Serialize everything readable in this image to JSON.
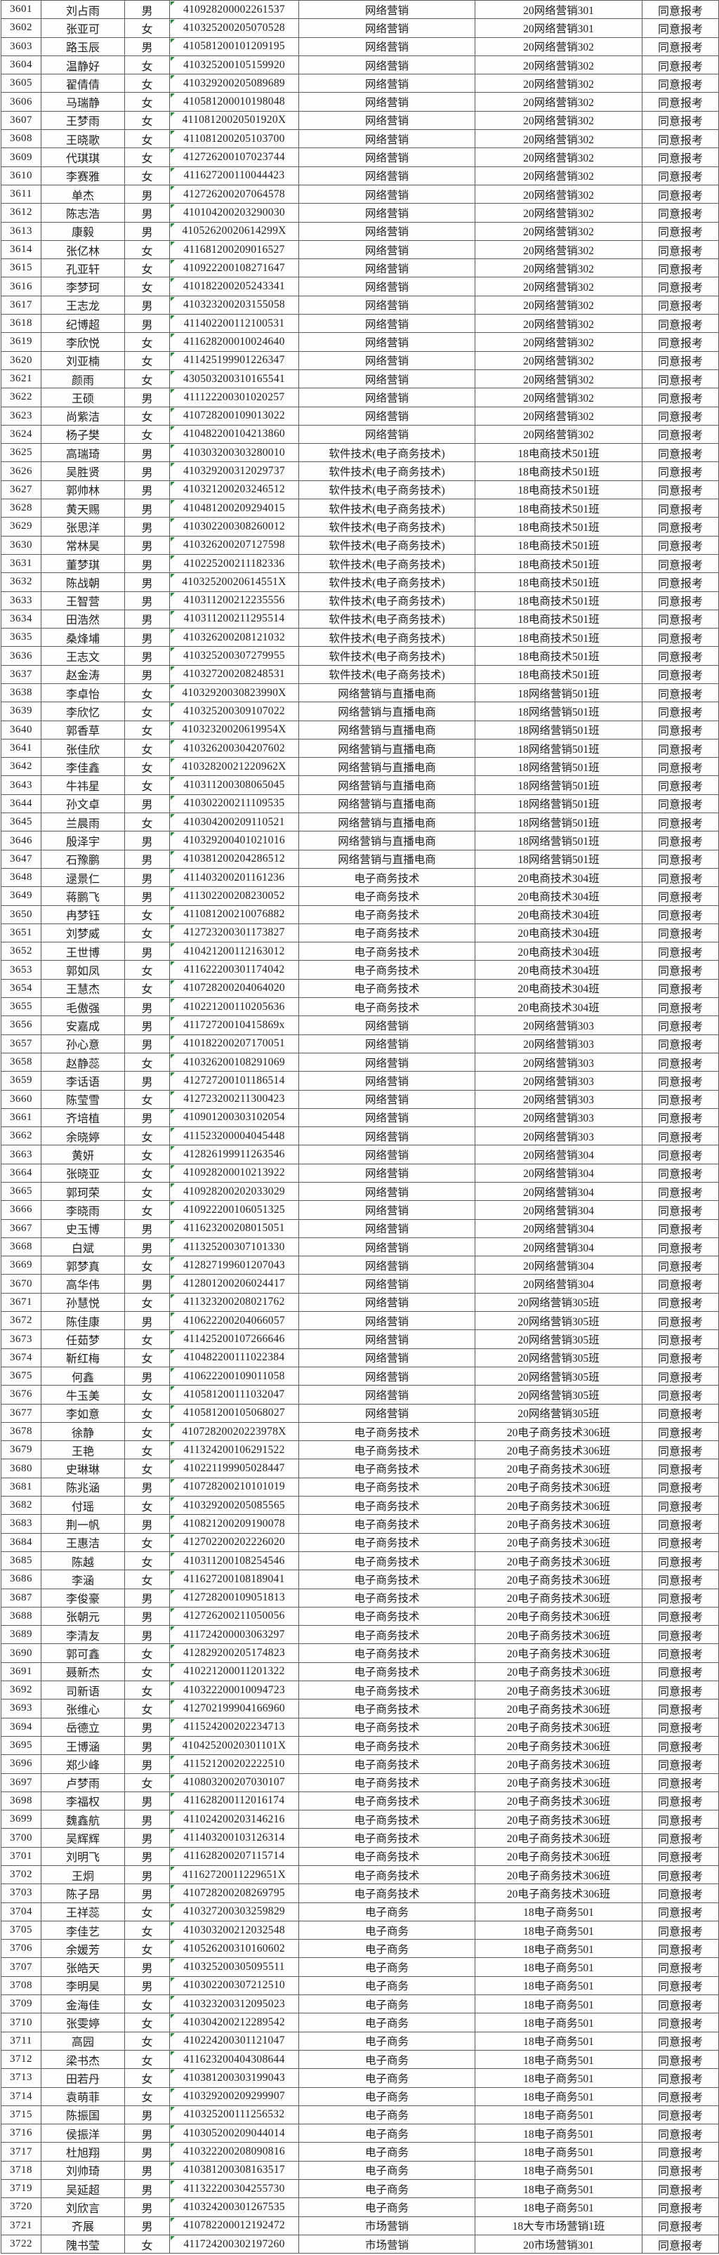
{
  "colors": {
    "background": "#fdfdfd",
    "grid_border": "#5b5b5b",
    "text": "#1d1d1d",
    "id_indicator_green": "#2e8b3d"
  },
  "table": {
    "status_label": "同意报考",
    "rows": [
      [
        "3601",
        "刘占雨",
        "男",
        "410928200002261537",
        "网络营销",
        "20网络营销301",
        "同意报考"
      ],
      [
        "3602",
        "张亚可",
        "女",
        "410325200205070528",
        "网络营销",
        "20网络营销301",
        "同意报考"
      ],
      [
        "3603",
        "路玉辰",
        "男",
        "410581200101209195",
        "网络营销",
        "20网络营销302",
        "同意报考"
      ],
      [
        "3604",
        "温静好",
        "女",
        "410325200105159920",
        "网络营销",
        "20网络营销302",
        "同意报考"
      ],
      [
        "3605",
        "翟倩倩",
        "女",
        "410329200205089689",
        "网络营销",
        "20网络营销302",
        "同意报考"
      ],
      [
        "3606",
        "马瑞静",
        "女",
        "410581200010198048",
        "网络营销",
        "20网络营销302",
        "同意报考"
      ],
      [
        "3607",
        "王梦雨",
        "女",
        "41108120020501920X",
        "网络营销",
        "20网络营销302",
        "同意报考"
      ],
      [
        "3608",
        "王晓歌",
        "女",
        "411081200205103700",
        "网络营销",
        "20网络营销302",
        "同意报考"
      ],
      [
        "3609",
        "代琪琪",
        "女",
        "412726200107023744",
        "网络营销",
        "20网络营销302",
        "同意报考"
      ],
      [
        "3610",
        "李赛雅",
        "女",
        "411627200110044423",
        "网络营销",
        "20网络营销302",
        "同意报考"
      ],
      [
        "3611",
        "单杰",
        "男",
        "412726200207064578",
        "网络营销",
        "20网络营销302",
        "同意报考"
      ],
      [
        "3612",
        "陈志浩",
        "男",
        "410104200203290030",
        "网络营销",
        "20网络营销302",
        "同意报考"
      ],
      [
        "3613",
        "康毅",
        "男",
        "41052620020614299X",
        "网络营销",
        "20网络营销302",
        "同意报考"
      ],
      [
        "3614",
        "张亿林",
        "女",
        "411681200209016527",
        "网络营销",
        "20网络营销302",
        "同意报考"
      ],
      [
        "3615",
        "孔亚轩",
        "女",
        "410922200108271647",
        "网络营销",
        "20网络营销302",
        "同意报考"
      ],
      [
        "3616",
        "李梦珂",
        "女",
        "410182200205243341",
        "网络营销",
        "20网络营销302",
        "同意报考"
      ],
      [
        "3617",
        "王志龙",
        "男",
        "410323200203155058",
        "网络营销",
        "20网络营销302",
        "同意报考"
      ],
      [
        "3618",
        "纪博超",
        "男",
        "411402200112100531",
        "网络营销",
        "20网络营销302",
        "同意报考"
      ],
      [
        "3619",
        "李欣悦",
        "女",
        "411628200010024640",
        "网络营销",
        "20网络营销302",
        "同意报考"
      ],
      [
        "3620",
        "刘亚楠",
        "女",
        "411425199901226347",
        "网络营销",
        "20网络营销302",
        "同意报考"
      ],
      [
        "3621",
        "颜雨",
        "女",
        "430503200310165541",
        "网络营销",
        "20网络营销302",
        "同意报考"
      ],
      [
        "3622",
        "王硕",
        "男",
        "411122200301020257",
        "网络营销",
        "20网络营销302",
        "同意报考"
      ],
      [
        "3623",
        "尚紫洁",
        "女",
        "410728200109013022",
        "网络营销",
        "20网络营销302",
        "同意报考"
      ],
      [
        "3624",
        "杨子樊",
        "女",
        "410482200104213860",
        "网络营销",
        "20网络营销302",
        "同意报考"
      ],
      [
        "3625",
        "高瑞琦",
        "男",
        "410303200303280010",
        "软件技术(电子商务技术)",
        "18电商技术501班",
        "同意报考"
      ],
      [
        "3626",
        "吴胜贤",
        "男",
        "410329200312029737",
        "软件技术(电子商务技术)",
        "18电商技术501班",
        "同意报考"
      ],
      [
        "3627",
        "郭帅林",
        "男",
        "410321200203246512",
        "软件技术(电子商务技术)",
        "18电商技术501班",
        "同意报考"
      ],
      [
        "3628",
        "黄天赐",
        "男",
        "410481200209294015",
        "软件技术(电子商务技术)",
        "18电商技术501班",
        "同意报考"
      ],
      [
        "3629",
        "张思洋",
        "男",
        "410302200308260012",
        "软件技术(电子商务技术)",
        "18电商技术501班",
        "同意报考"
      ],
      [
        "3630",
        "常林昊",
        "男",
        "410326200207127598",
        "软件技术(电子商务技术)",
        "18电商技术501班",
        "同意报考"
      ],
      [
        "3631",
        "董梦琪",
        "男",
        "410225200211182336",
        "软件技术(电子商务技术)",
        "18电商技术501班",
        "同意报考"
      ],
      [
        "3632",
        "陈战朝",
        "男",
        "41032520020614551X",
        "软件技术(电子商务技术)",
        "18电商技术501班",
        "同意报考"
      ],
      [
        "3633",
        "王智营",
        "男",
        "410311200212235556",
        "软件技术(电子商务技术)",
        "18电商技术501班",
        "同意报考"
      ],
      [
        "3634",
        "田浩然",
        "男",
        "410311200211295514",
        "软件技术(电子商务技术)",
        "18电商技术501班",
        "同意报考"
      ],
      [
        "3635",
        "桑烽埔",
        "男",
        "410326200208121032",
        "软件技术(电子商务技术)",
        "18电商技术501班",
        "同意报考"
      ],
      [
        "3636",
        "王志文",
        "男",
        "410325200307279955",
        "软件技术(电子商务技术)",
        "18电商技术501班",
        "同意报考"
      ],
      [
        "3637",
        "赵金涛",
        "男",
        "410327200208248531",
        "软件技术(电子商务技术)",
        "18电商技术501班",
        "同意报考"
      ],
      [
        "3638",
        "李卓怡",
        "女",
        "41032920030823990X",
        "网络营销与直播电商",
        "18网络营销501班",
        "同意报考"
      ],
      [
        "3639",
        "李欣忆",
        "女",
        "410325200309107022",
        "网络营销与直播电商",
        "18网络营销501班",
        "同意报考"
      ],
      [
        "3640",
        "郭香草",
        "女",
        "41032320020619954X",
        "网络营销与直播电商",
        "18网络营销501班",
        "同意报考"
      ],
      [
        "3641",
        "张佳欣",
        "女",
        "410326200304207602",
        "网络营销与直播电商",
        "18网络营销501班",
        "同意报考"
      ],
      [
        "3642",
        "李佳鑫",
        "女",
        "41032820021220962X",
        "网络营销与直播电商",
        "18网络营销501班",
        "同意报考"
      ],
      [
        "3643",
        "牛祎星",
        "女",
        "410311200308065045",
        "网络营销与直播电商",
        "18网络营销501班",
        "同意报考"
      ],
      [
        "3644",
        "孙文卓",
        "男",
        "410302200211109535",
        "网络营销与直播电商",
        "18网络营销501班",
        "同意报考"
      ],
      [
        "3645",
        "兰晨雨",
        "女",
        "410304200209110521",
        "网络营销与直播电商",
        "18网络营销501班",
        "同意报考"
      ],
      [
        "3646",
        "殷泽宇",
        "男",
        "410329200401021016",
        "网络营销与直播电商",
        "18网络营销501班",
        "同意报考"
      ],
      [
        "3647",
        "石豫鹏",
        "男",
        "410381200204286512",
        "网络营销与直播电商",
        "18网络营销501班",
        "同意报考"
      ],
      [
        "3648",
        "逯景仁",
        "男",
        "411403200201161236",
        "电子商务技术",
        "20电商技术304班",
        "同意报考"
      ],
      [
        "3649",
        "蒋鹏飞",
        "男",
        "411302200208230052",
        "电子商务技术",
        "20电商技术304班",
        "同意报考"
      ],
      [
        "3650",
        "冉梦钰",
        "女",
        "411081200210076882",
        "电子商务技术",
        "20电商技术304班",
        "同意报考"
      ],
      [
        "3651",
        "刘梦威",
        "女",
        "412723200301173827",
        "电子商务技术",
        "20电商技术304班",
        "同意报考"
      ],
      [
        "3652",
        "王世博",
        "男",
        "410421200112163012",
        "电子商务技术",
        "20电商技术304班",
        "同意报考"
      ],
      [
        "3653",
        "郭如凤",
        "女",
        "411622200301174042",
        "电子商务技术",
        "20电商技术304班",
        "同意报考"
      ],
      [
        "3654",
        "王慧杰",
        "女",
        "410728200204064020",
        "电子商务技术",
        "20电商技术304班",
        "同意报考"
      ],
      [
        "3655",
        "毛傲强",
        "男",
        "410221200110205636",
        "电子商务技术",
        "20电商技术304班",
        "同意报考"
      ],
      [
        "3656",
        "安嘉成",
        "男",
        "41172720010415869x",
        "网络营销",
        "20网络营销303",
        "同意报考"
      ],
      [
        "3657",
        "孙心意",
        "男",
        "410182200207170051",
        "网络营销",
        "20网络营销303",
        "同意报考"
      ],
      [
        "3658",
        "赵静蕊",
        "女",
        "410326200108291069",
        "网络营销",
        "20网络营销303",
        "同意报考"
      ],
      [
        "3659",
        "李话语",
        "男",
        "412727200101186514",
        "网络营销",
        "20网络营销303",
        "同意报考"
      ],
      [
        "3660",
        "陈莹雪",
        "女",
        "412723200211300423",
        "网络营销",
        "20网络营销303",
        "同意报考"
      ],
      [
        "3661",
        "齐培植",
        "男",
        "410901200303102054",
        "网络营销",
        "20网络营销303",
        "同意报考"
      ],
      [
        "3662",
        "余晓婷",
        "女",
        "411523200004045448",
        "网络营销",
        "20网络营销303",
        "同意报考"
      ],
      [
        "3663",
        "黄妍",
        "女",
        "412826199911263546",
        "网络营销",
        "20网络营销304",
        "同意报考"
      ],
      [
        "3664",
        "张晓亚",
        "女",
        "410928200010213922",
        "网络营销",
        "20网络营销304",
        "同意报考"
      ],
      [
        "3665",
        "郭珂荣",
        "女",
        "410928200202033029",
        "网络营销",
        "20网络营销304",
        "同意报考"
      ],
      [
        "3666",
        "李晓雨",
        "女",
        "410922200106051325",
        "网络营销",
        "20网络营销304",
        "同意报考"
      ],
      [
        "3667",
        "史玉博",
        "男",
        "411623200208015051",
        "网络营销",
        "20网络营销304",
        "同意报考"
      ],
      [
        "3668",
        "白斌",
        "男",
        "411325200307101330",
        "网络营销",
        "20网络营销304",
        "同意报考"
      ],
      [
        "3669",
        "郭梦真",
        "女",
        "412827199601207043",
        "网络营销",
        "20网络营销304",
        "同意报考"
      ],
      [
        "3670",
        "高华伟",
        "男",
        "412801200206024417",
        "网络营销",
        "20网络营销304",
        "同意报考"
      ],
      [
        "3671",
        "孙慧悦",
        "女",
        "411323200208021762",
        "网络营销",
        "20网络营销305班",
        "同意报考"
      ],
      [
        "3672",
        "陈佳康",
        "男",
        "410622200204066057",
        "网络营销",
        "20网络营销305班",
        "同意报考"
      ],
      [
        "3673",
        "任茹梦",
        "女",
        "411425200107266646",
        "网络营销",
        "20网络营销305班",
        "同意报考"
      ],
      [
        "3674",
        "靳红梅",
        "女",
        "410482200111022384",
        "网络营销",
        "20网络营销305班",
        "同意报考"
      ],
      [
        "3675",
        "何鑫",
        "男",
        "410622200109011058",
        "网络营销",
        "20网络营销305班",
        "同意报考"
      ],
      [
        "3676",
        "牛玉美",
        "女",
        "410581200111032047",
        "网络营销",
        "20网络营销305班",
        "同意报考"
      ],
      [
        "3677",
        "李如意",
        "女",
        "410581200105068027",
        "网络营销",
        "20网络营销305班",
        "同意报考"
      ],
      [
        "3678",
        "徐静",
        "女",
        "41072820020223978X",
        "电子商务技术",
        "20电子商务技术306班",
        "同意报考"
      ],
      [
        "3679",
        "王艳",
        "女",
        "411324200106291522",
        "电子商务技术",
        "20电子商务技术306班",
        "同意报考"
      ],
      [
        "3680",
        "史琳琳",
        "女",
        "410221199905028447",
        "电子商务技术",
        "20电子商务技术306班",
        "同意报考"
      ],
      [
        "3681",
        "陈兆涵",
        "男",
        "410728200210101019",
        "电子商务技术",
        "20电子商务技术306班",
        "同意报考"
      ],
      [
        "3682",
        "付瑶",
        "女",
        "410329200205085565",
        "电子商务技术",
        "20电子商务技术306班",
        "同意报考"
      ],
      [
        "3683",
        "荆一帆",
        "男",
        "410821200209190078",
        "电子商务技术",
        "20电子商务技术306班",
        "同意报考"
      ],
      [
        "3684",
        "王惠洁",
        "女",
        "412702200202226020",
        "电子商务技术",
        "20电子商务技术306班",
        "同意报考"
      ],
      [
        "3685",
        "陈越",
        "女",
        "410311200108254546",
        "电子商务技术",
        "20电子商务技术306班",
        "同意报考"
      ],
      [
        "3686",
        "李涵",
        "女",
        "411627200108189041",
        "电子商务技术",
        "20电子商务技术306班",
        "同意报考"
      ],
      [
        "3687",
        "李俊豪",
        "男",
        "412728200109051813",
        "电子商务技术",
        "20电子商务技术306班",
        "同意报考"
      ],
      [
        "3688",
        "张朝元",
        "男",
        "412726200211050056",
        "电子商务技术",
        "20电子商务技术306班",
        "同意报考"
      ],
      [
        "3689",
        "李清友",
        "男",
        "411724200003063297",
        "电子商务技术",
        "20电子商务技术306班",
        "同意报考"
      ],
      [
        "3690",
        "郭可鑫",
        "女",
        "412829200205174823",
        "电子商务技术",
        "20电子商务技术306班",
        "同意报考"
      ],
      [
        "3691",
        "聂新杰",
        "女",
        "410221200011201322",
        "电子商务技术",
        "20电子商务技术306班",
        "同意报考"
      ],
      [
        "3692",
        "司新语",
        "女",
        "410322200010094723",
        "电子商务技术",
        "20电子商务技术306班",
        "同意报考"
      ],
      [
        "3693",
        "张维心",
        "女",
        "412702199904166960",
        "电子商务技术",
        "20电子商务技术306班",
        "同意报考"
      ],
      [
        "3694",
        "岳德立",
        "男",
        "411524200202234713",
        "电子商务技术",
        "20电子商务技术306班",
        "同意报考"
      ],
      [
        "3695",
        "王博涵",
        "男",
        "41042520020301101X",
        "电子商务技术",
        "20电子商务技术306班",
        "同意报考"
      ],
      [
        "3696",
        "郑少峰",
        "男",
        "411521200202222510",
        "电子商务技术",
        "20电子商务技术306班",
        "同意报考"
      ],
      [
        "3697",
        "卢梦雨",
        "女",
        "410803200207030107",
        "电子商务技术",
        "20电子商务技术306班",
        "同意报考"
      ],
      [
        "3698",
        "李福权",
        "男",
        "411628200112016174",
        "电子商务技术",
        "20电子商务技术306班",
        "同意报考"
      ],
      [
        "3699",
        "魏鑫航",
        "男",
        "411024200203146216",
        "电子商务技术",
        "20电子商务技术306班",
        "同意报考"
      ],
      [
        "3700",
        "吴辉辉",
        "男",
        "411403200103126314",
        "电子商务技术",
        "20电子商务技术306班",
        "同意报考"
      ],
      [
        "3701",
        "刘明飞",
        "男",
        "411628200207115714",
        "电子商务技术",
        "20电子商务技术306班",
        "同意报考"
      ],
      [
        "3702",
        "王炯",
        "男",
        "41162720011229651X",
        "电子商务技术",
        "20电子商务技术306班",
        "同意报考"
      ],
      [
        "3703",
        "陈子昂",
        "男",
        "410728200208269795",
        "电子商务技术",
        "20电子商务技术306班",
        "同意报考"
      ],
      [
        "3704",
        "王祥蕊",
        "女",
        "410327200303259829",
        "电子商务",
        "18电子商务501",
        "同意报考"
      ],
      [
        "3705",
        "李佳艺",
        "女",
        "410303200212032548",
        "电子商务",
        "18电子商务501",
        "同意报考"
      ],
      [
        "3706",
        "余媛芳",
        "女",
        "410526200310160602",
        "电子商务",
        "18电子商务501",
        "同意报考"
      ],
      [
        "3707",
        "张皓天",
        "男",
        "410325200305095511",
        "电子商务",
        "18电子商务501",
        "同意报考"
      ],
      [
        "3708",
        "李明昊",
        "男",
        "410302200307212510",
        "电子商务",
        "18电子商务501",
        "同意报考"
      ],
      [
        "3709",
        "金海佳",
        "女",
        "410323200312095023",
        "电子商务",
        "18电子商务501",
        "同意报考"
      ],
      [
        "3710",
        "张雯婷",
        "女",
        "410304200212289542",
        "电子商务",
        "18电子商务501",
        "同意报考"
      ],
      [
        "3711",
        "高园",
        "女",
        "410224200301121047",
        "电子商务",
        "18电子商务501",
        "同意报考"
      ],
      [
        "3712",
        "梁书杰",
        "女",
        "411623200404308644",
        "电子商务",
        "18电子商务501",
        "同意报考"
      ],
      [
        "3713",
        "田若丹",
        "女",
        "410381200303199043",
        "电子商务",
        "18电子商务501",
        "同意报考"
      ],
      [
        "3714",
        "袁萌菲",
        "女",
        "410329200209299907",
        "电子商务",
        "18电子商务501",
        "同意报考"
      ],
      [
        "3715",
        "陈振国",
        "男",
        "410325200111256532",
        "电子商务",
        "18电子商务501",
        "同意报考"
      ],
      [
        "3716",
        "侯振洋",
        "男",
        "410305200209044014",
        "电子商务",
        "18电子商务501",
        "同意报考"
      ],
      [
        "3717",
        "杜旭翔",
        "男",
        "410322200208090816",
        "电子商务",
        "18电子商务501",
        "同意报考"
      ],
      [
        "3718",
        "刘帅琦",
        "男",
        "410381200308163517",
        "电子商务",
        "18电子商务501",
        "同意报考"
      ],
      [
        "3719",
        "吴延超",
        "男",
        "411322200304255730",
        "电子商务",
        "18电子商务501",
        "同意报考"
      ],
      [
        "3720",
        "刘欣言",
        "男",
        "410324200301267535",
        "电子商务",
        "18电子商务501",
        "同意报考"
      ],
      [
        "3721",
        "齐展",
        "男",
        "410782200012192472",
        "市场营销",
        "18大专市场营销1班",
        "同意报考"
      ],
      [
        "3722",
        "隗书莹",
        "女",
        "411724200302197260",
        "市场营销",
        "20市场营销301",
        "同意报考"
      ]
    ]
  }
}
